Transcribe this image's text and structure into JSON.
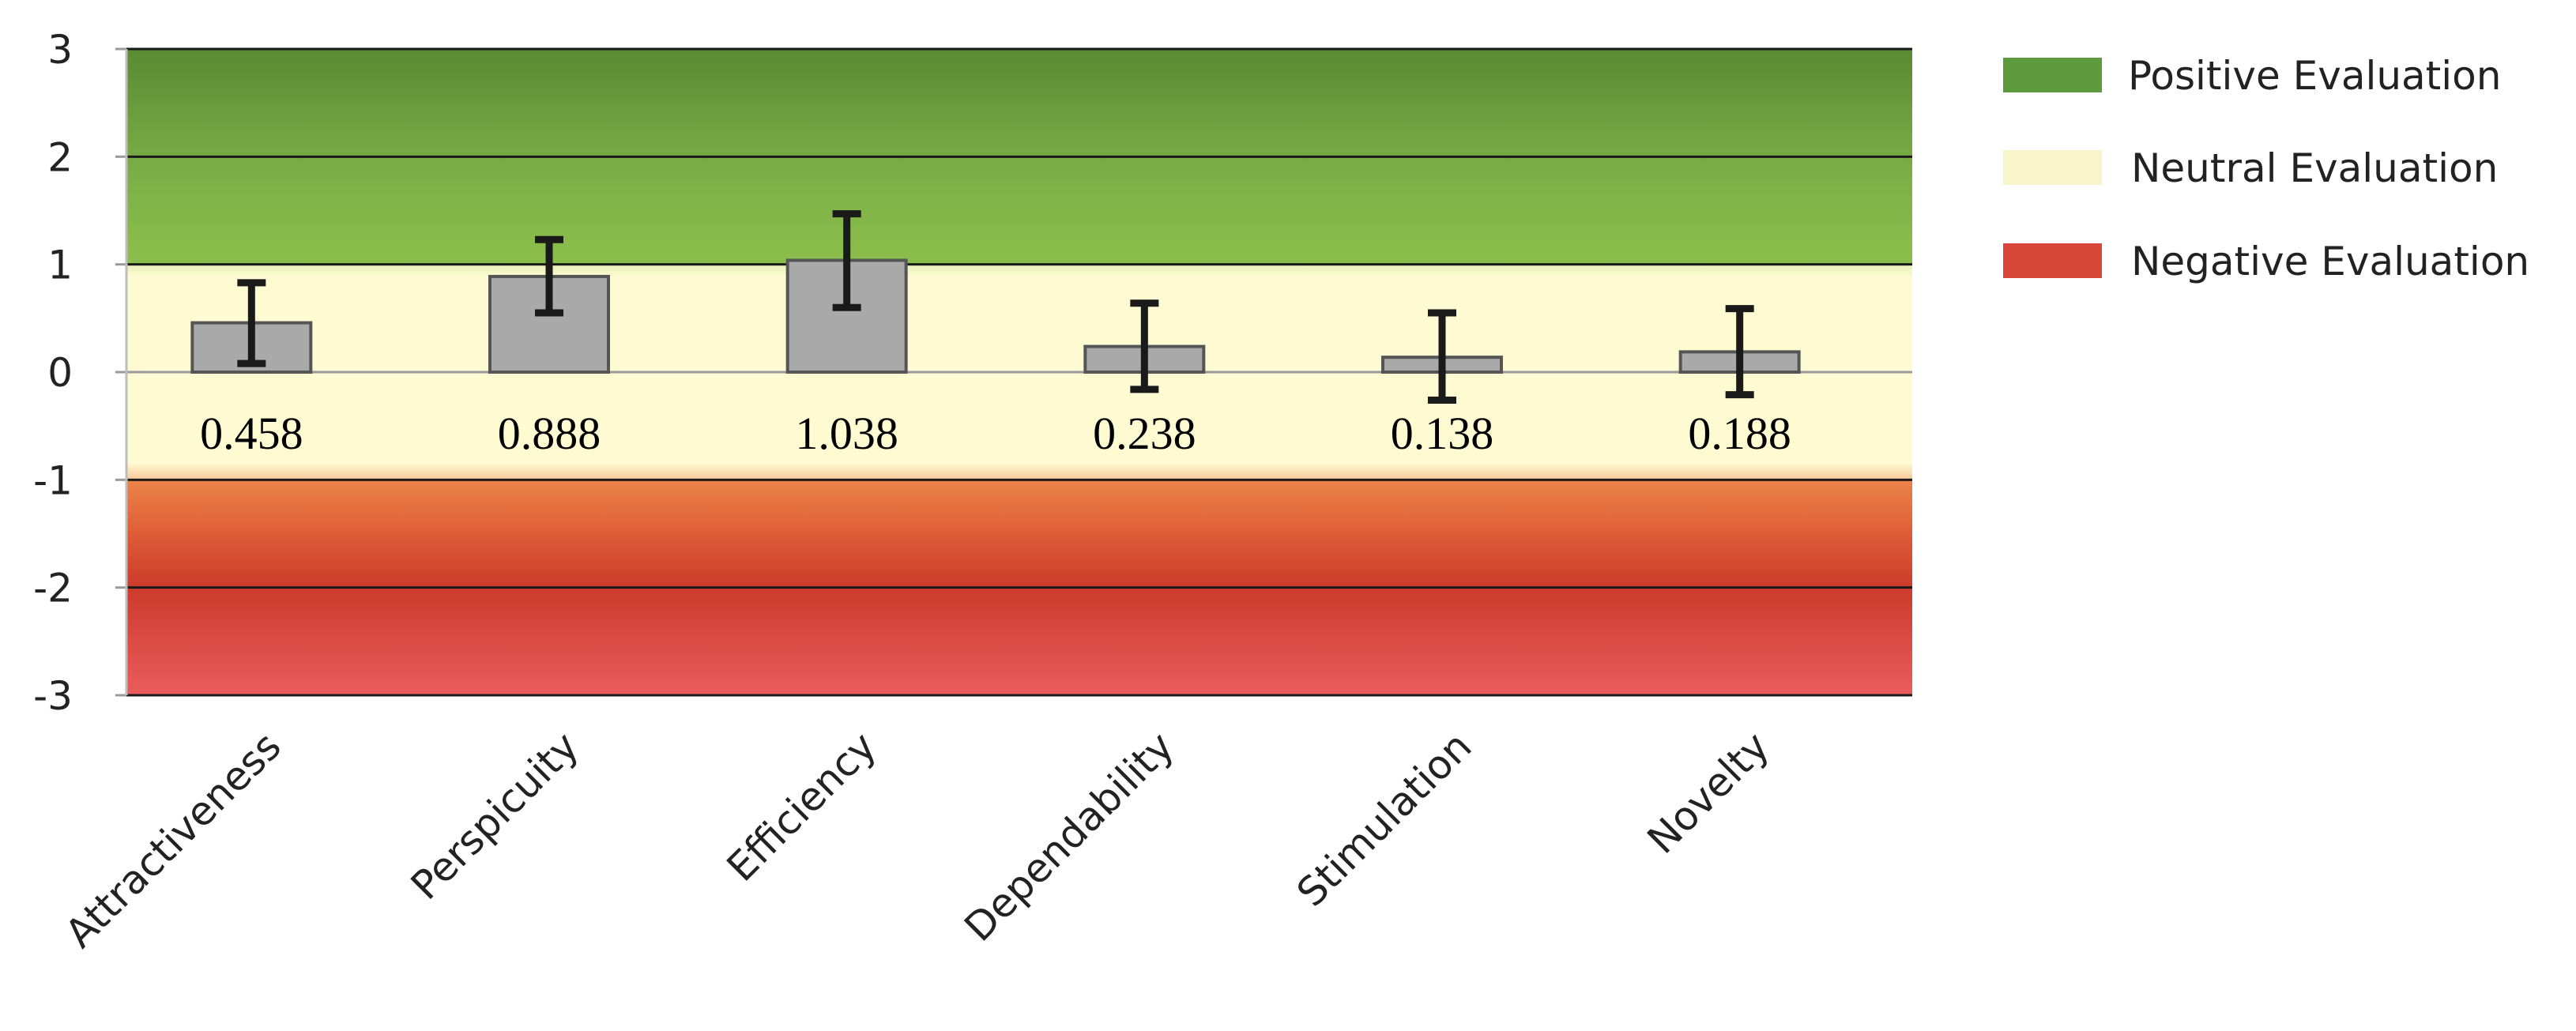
{
  "chart_data": {
    "type": "bar",
    "categories": [
      "Attractiveness",
      "Perspicuity",
      "Efficiency",
      "Dependability",
      "Stimulation",
      "Novelty"
    ],
    "values": [
      0.458,
      0.888,
      1.038,
      0.238,
      0.138,
      0.188
    ],
    "value_labels": [
      "0.458",
      "0.888",
      "1.038",
      "0.238",
      "0.138",
      "0.188"
    ],
    "error_bars": [
      {
        "low": 0.08,
        "high": 0.83
      },
      {
        "low": 0.55,
        "high": 1.23
      },
      {
        "low": 0.6,
        "high": 1.47
      },
      {
        "low": -0.16,
        "high": 0.64
      },
      {
        "low": -0.26,
        "high": 0.55
      },
      {
        "low": -0.21,
        "high": 0.59
      }
    ],
    "ylim": [
      -3,
      3
    ],
    "yticks": [
      "3",
      "2",
      "1",
      "0",
      "-1",
      "-2",
      "-3"
    ],
    "ytick_values": [
      3,
      2,
      1,
      0,
      -1,
      -2,
      -3
    ],
    "grid": true,
    "title": "",
    "xlabel": "",
    "ylabel": "",
    "bands": [
      {
        "name": "Positive Evaluation",
        "from": 1,
        "to": 3,
        "color": "#5d9a3e"
      },
      {
        "name": "Neutral Evaluation",
        "from": -1,
        "to": 1,
        "color": "#fefbd2"
      },
      {
        "name": "Negative Evaluation",
        "from": -3,
        "to": -1,
        "color": "#d9473a"
      }
    ],
    "legend": {
      "position": "right",
      "entries": [
        "Positive Evaluation",
        "Neutral Evaluation",
        "Negative Evaluation"
      ]
    },
    "colors": {
      "bar_fill": "#a9a9a9",
      "bar_stroke": "#555555",
      "error_bar": "#1a1a1a",
      "gridline": "#1a1a1a",
      "positive": "#5d9a3e",
      "neutral": "#f8f5c9",
      "negative": "#d9473a"
    }
  }
}
